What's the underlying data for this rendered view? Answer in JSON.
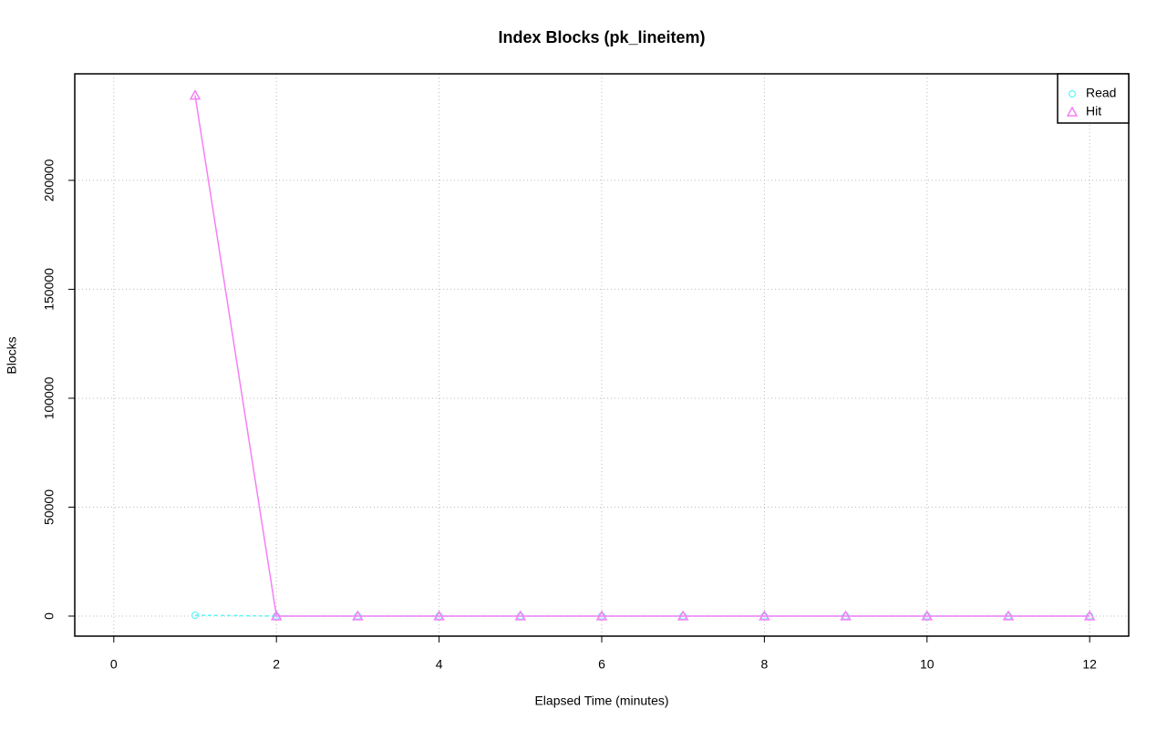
{
  "chart_data": {
    "type": "line",
    "title": "Index Blocks (pk_lineitem)",
    "x_label": "Elapsed Time (minutes)",
    "y_label": "Blocks",
    "x": [
      1,
      2,
      3,
      4,
      5,
      6,
      7,
      8,
      9,
      10,
      11,
      12
    ],
    "series": [
      {
        "name": "Read",
        "color": "#5ff5f5",
        "marker": "circle",
        "linestyle": "dashed",
        "values": [
          400,
          0,
          0,
          0,
          0,
          0,
          0,
          0,
          0,
          0,
          0,
          0
        ]
      },
      {
        "name": "Hit",
        "color": "#f57ff5",
        "marker": "triangle",
        "linestyle": "solid",
        "values": [
          239000,
          0,
          0,
          0,
          0,
          0,
          0,
          0,
          0,
          0,
          0,
          0
        ]
      }
    ],
    "xlim": [
      -0.48,
      12.48
    ],
    "xticks": [
      0,
      2,
      4,
      6,
      8,
      10,
      12
    ],
    "ylim": [
      -9200,
      248900
    ],
    "yticks": [
      0,
      50000,
      100000,
      150000,
      200000
    ],
    "grid": true,
    "legend": "top-right"
  }
}
